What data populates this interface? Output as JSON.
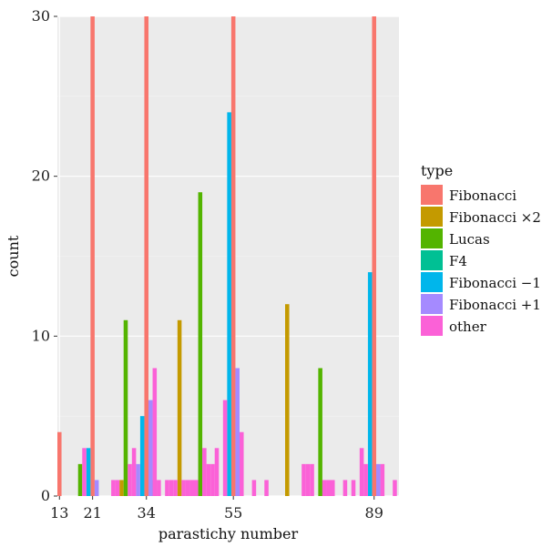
{
  "chart_data": {
    "type": "bar",
    "xlabel": "parastichy number",
    "ylabel": "count",
    "xlim": [
      13,
      94
    ],
    "ylim": [
      0,
      30
    ],
    "x_ticks": [
      13,
      21,
      34,
      55,
      89
    ],
    "y_ticks": [
      0,
      10,
      20,
      30
    ],
    "grid": true,
    "bar_width": 1,
    "legend": {
      "title": "type",
      "position": "right"
    },
    "series": [
      {
        "name": "Fibonacci",
        "color": "#F8766D",
        "points": [
          [
            13,
            4
          ],
          [
            21,
            30
          ],
          [
            34,
            30
          ],
          [
            55,
            30
          ],
          [
            89,
            30
          ]
        ]
      },
      {
        "name": "Fibonacci ×2",
        "color": "#C49A00",
        "points": [
          [
            28,
            1
          ],
          [
            42,
            11
          ],
          [
            68,
            12
          ]
        ]
      },
      {
        "name": "Lucas",
        "color": "#53B400",
        "points": [
          [
            18,
            2
          ],
          [
            29,
            11
          ],
          [
            47,
            19
          ],
          [
            76,
            8
          ]
        ]
      },
      {
        "name": "F4",
        "color": "#00C094",
        "points": [
          [
            36,
            1
          ]
        ]
      },
      {
        "name": "Fibonacci −1",
        "color": "#00B6EB",
        "points": [
          [
            20,
            3
          ],
          [
            33,
            5
          ],
          [
            54,
            24
          ],
          [
            88,
            14
          ]
        ]
      },
      {
        "name": "Fibonacci +1",
        "color": "#A58AFF",
        "points": [
          [
            22,
            1
          ],
          [
            32,
            2
          ],
          [
            35,
            6
          ],
          [
            56,
            8
          ],
          [
            90,
            2
          ]
        ]
      },
      {
        "name": "other",
        "color": "#FB61D7",
        "points": [
          [
            19,
            3
          ],
          [
            26,
            1
          ],
          [
            27,
            1
          ],
          [
            30,
            2
          ],
          [
            31,
            3
          ],
          [
            36,
            8
          ],
          [
            37,
            1
          ],
          [
            39,
            1
          ],
          [
            40,
            1
          ],
          [
            41,
            1
          ],
          [
            43,
            1
          ],
          [
            44,
            1
          ],
          [
            45,
            1
          ],
          [
            46,
            1
          ],
          [
            48,
            3
          ],
          [
            49,
            2
          ],
          [
            50,
            2
          ],
          [
            51,
            3
          ],
          [
            53,
            6
          ],
          [
            57,
            4
          ],
          [
            60,
            1
          ],
          [
            63,
            1
          ],
          [
            72,
            2
          ],
          [
            73,
            2
          ],
          [
            74,
            2
          ],
          [
            77,
            1
          ],
          [
            78,
            1
          ],
          [
            79,
            1
          ],
          [
            82,
            1
          ],
          [
            84,
            1
          ],
          [
            86,
            3
          ],
          [
            87,
            2
          ],
          [
            91,
            2
          ],
          [
            94,
            1
          ]
        ]
      }
    ]
  }
}
